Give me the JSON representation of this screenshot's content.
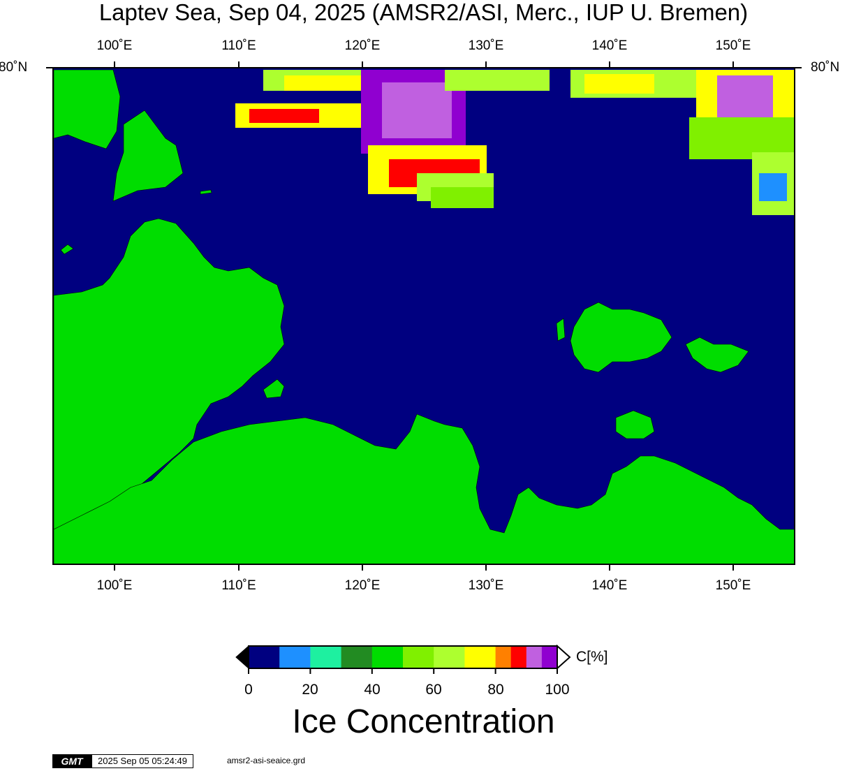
{
  "title": "Laptev Sea, Sep 04, 2025 (AMSR2/ASI, Merc., IUP U. Bremen)",
  "map": {
    "lon_ticks": [
      "100˚E",
      "110˚E",
      "120˚E",
      "130˚E",
      "140˚E",
      "150˚E"
    ],
    "lat_tick": "80˚N",
    "colors": {
      "ocean": "#000080",
      "land": "#00DD00",
      "frame": "#000000"
    }
  },
  "colorbar": {
    "unit_label": "C[%]",
    "tick_labels": [
      "0",
      "20",
      "40",
      "60",
      "80",
      "100"
    ],
    "bins": [
      {
        "from": 0,
        "to": 10,
        "color": "#000080"
      },
      {
        "from": 10,
        "to": 20,
        "color": "#1E90FF"
      },
      {
        "from": 20,
        "to": 30,
        "color": "#1EF0A0"
      },
      {
        "from": 30,
        "to": 40,
        "color": "#228B22"
      },
      {
        "from": 40,
        "to": 50,
        "color": "#00DD00"
      },
      {
        "from": 50,
        "to": 60,
        "color": "#80F000"
      },
      {
        "from": 60,
        "to": 70,
        "color": "#ADFF2F"
      },
      {
        "from": 70,
        "to": 80,
        "color": "#FFFF00"
      },
      {
        "from": 80,
        "to": 85,
        "color": "#FF8000"
      },
      {
        "from": 85,
        "to": 90,
        "color": "#FF0000"
      },
      {
        "from": 90,
        "to": 95,
        "color": "#C060E0"
      },
      {
        "from": 95,
        "to": 100,
        "color": "#9000D0"
      }
    ]
  },
  "subtitle": "Ice Concentration",
  "footer": {
    "logo_text": "GMT",
    "timestamp": "2025 Sep 05 05:24:49",
    "filename": "amsr2-asi-seaice.grd"
  }
}
